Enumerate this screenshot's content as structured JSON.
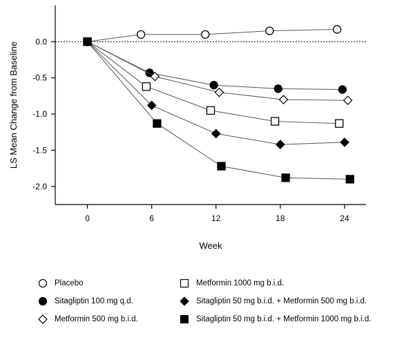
{
  "chart_data": {
    "type": "line",
    "title": "",
    "xlabel": "Week",
    "ylabel": "LS Mean Change from Baseline",
    "xlim": [
      -3,
      26
    ],
    "ylim": [
      -2.25,
      0.5
    ],
    "xticks": [
      0,
      6,
      12,
      18,
      24
    ],
    "yticks": [
      0.0,
      -0.5,
      -1.0,
      -1.5,
      -2.0
    ],
    "ytick_labels": [
      "0.0",
      "-0.5",
      "-1.0",
      "-1.5",
      "-2.0"
    ],
    "reference_line": {
      "y": 0,
      "style": "dotted"
    },
    "grid": false,
    "legend_position": "bottom",
    "series": [
      {
        "name": "Placebo",
        "marker": "circle-open",
        "x": [
          0,
          5,
          11,
          17,
          23.3
        ],
        "y": [
          0.0,
          0.1,
          0.1,
          0.15,
          0.17
        ],
        "err": [
          0.03,
          0.04,
          0.05,
          0.05,
          0.05
        ]
      },
      {
        "name": "Sitagliptin 100 mg q.d.",
        "marker": "circle-filled",
        "x": [
          0,
          5.8,
          11.8,
          17.8,
          23.8
        ],
        "y": [
          0.0,
          -0.43,
          -0.6,
          -0.65,
          -0.66
        ],
        "err": [
          0.03,
          0.04,
          0.05,
          0.05,
          0.05
        ]
      },
      {
        "name": "Metformin 500 mg b.i.d.",
        "marker": "diamond-open",
        "x": [
          0,
          6.3,
          12.3,
          18.3,
          24.3
        ],
        "y": [
          0.0,
          -0.48,
          -0.7,
          -0.8,
          -0.81
        ],
        "err": [
          0.03,
          0.04,
          0.05,
          0.05,
          0.05
        ]
      },
      {
        "name": "Metformin 1000 mg b.i.d.",
        "marker": "square-open",
        "x": [
          0,
          5.5,
          11.5,
          17.5,
          23.5
        ],
        "y": [
          0.0,
          -0.62,
          -0.95,
          -1.1,
          -1.13
        ],
        "err": [
          0.03,
          0.04,
          0.05,
          0.05,
          0.05
        ]
      },
      {
        "name": "Sitagliptin 50 mg b.i.d. + Metformin 500 mg b.i.d.",
        "marker": "diamond-filled",
        "x": [
          0,
          6.0,
          12.0,
          18.0,
          24.0
        ],
        "y": [
          0.0,
          -0.88,
          -1.27,
          -1.42,
          -1.39
        ],
        "err": [
          0.03,
          0.04,
          0.05,
          0.05,
          0.05
        ]
      },
      {
        "name": "Sitagliptin 50 mg b.i.d. + Metformin 1000 mg b.i.d.",
        "marker": "square-filled",
        "x": [
          0,
          6.5,
          12.5,
          18.5,
          24.5
        ],
        "y": [
          0.0,
          -1.13,
          -1.72,
          -1.88,
          -1.9
        ],
        "err": [
          0.03,
          0.04,
          0.05,
          0.05,
          0.05
        ]
      }
    ]
  }
}
